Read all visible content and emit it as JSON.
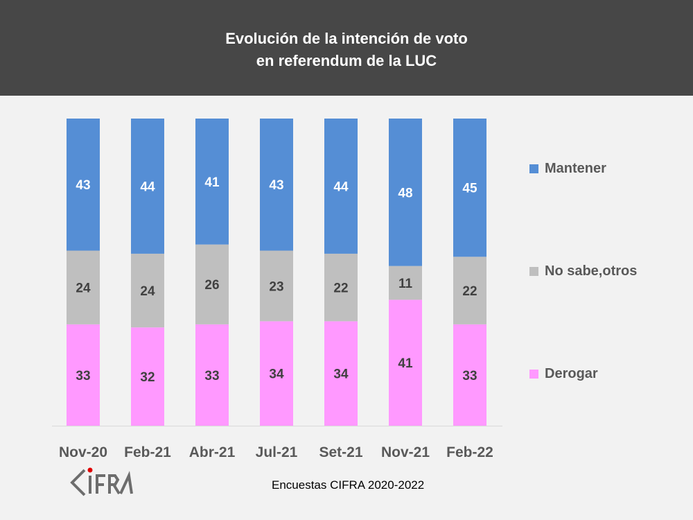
{
  "chart_data": {
    "type": "bar",
    "stacked": true,
    "title": "Evolución de la intención de voto\nen referendum de la LUC",
    "title_lines": [
      "Evolución de la intención de voto",
      "en referendum de la LUC"
    ],
    "categories": [
      "Nov-20",
      "Feb-21",
      "Abr-21",
      "Jul-21",
      "Set-21",
      "Nov-21",
      "Feb-22"
    ],
    "series": [
      {
        "name": "Derogar",
        "values": [
          33,
          32,
          33,
          34,
          34,
          41,
          33
        ],
        "color": "#ff99ff"
      },
      {
        "name": "No sabe,otros",
        "values": [
          24,
          24,
          26,
          23,
          22,
          11,
          22
        ],
        "color": "#bfbfbf"
      },
      {
        "name": "Mantener",
        "values": [
          43,
          44,
          41,
          43,
          44,
          48,
          45
        ],
        "color": "#558ed5"
      }
    ],
    "ylim": [
      0,
      100
    ],
    "grid": false,
    "legend_placement": "right"
  },
  "source": "Encuestas CIFRA 2020-2022",
  "logo_text": "CIFRA"
}
